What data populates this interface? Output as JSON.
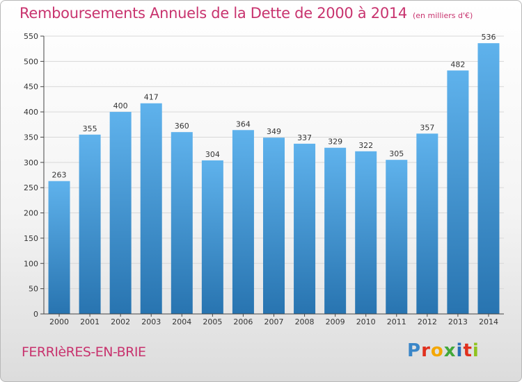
{
  "title": "Remboursements Annuels de la Dette de 2000 à 2014",
  "subtitle": "(en milliers d'€)",
  "town": "FERRIèRES-EN-BRIE",
  "logo": [
    "P",
    "r",
    "o",
    "x",
    "i",
    "t",
    "i"
  ],
  "colors": {
    "accent": "#c8336e",
    "bar_top": "#5aaee8",
    "bar_bottom": "#2a78b6",
    "grid": "#d8d8d8"
  },
  "chart_data": {
    "type": "bar",
    "categories": [
      "2000",
      "2001",
      "2002",
      "2003",
      "2004",
      "2005",
      "2006",
      "2007",
      "2008",
      "2009",
      "2010",
      "2011",
      "2012",
      "2013",
      "2014"
    ],
    "values": [
      263,
      355,
      400,
      417,
      360,
      304,
      364,
      349,
      337,
      329,
      322,
      305,
      357,
      482,
      536
    ],
    "title": "Remboursements Annuels de la Dette de 2000 à 2014",
    "subtitle": "(en milliers d'€)",
    "ylim": [
      0,
      550
    ],
    "yticks": [
      0,
      50,
      100,
      150,
      200,
      250,
      300,
      350,
      400,
      450,
      500,
      550
    ],
    "grid": true,
    "data_labels": true
  }
}
